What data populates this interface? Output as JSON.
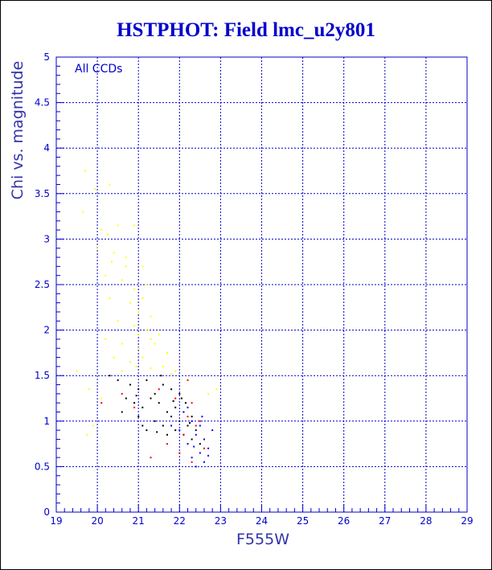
{
  "chart_data": {
    "type": "scatter",
    "title": "HSTPHOT: Field lmc_u2y801",
    "xlabel": "F555W",
    "ylabel": "Chi vs. magnitude",
    "annotation": "All CCDs",
    "xlim": [
      19,
      29
    ],
    "ylim": [
      0,
      5
    ],
    "x_ticks": [
      "19",
      "20",
      "21",
      "22",
      "23",
      "24",
      "25",
      "26",
      "27",
      "28",
      "29"
    ],
    "y_ticks": [
      "0",
      "0.5",
      "1",
      "1.5",
      "2",
      "2.5",
      "3",
      "3.5",
      "4",
      "4.5",
      "5"
    ],
    "grid": true,
    "series": [
      {
        "color": "#ffff00",
        "points": [
          [
            19.7,
            3.75
          ],
          [
            19.65,
            3.3
          ],
          [
            19.95,
            3.55
          ],
          [
            20.3,
            3.6
          ],
          [
            20.5,
            3.15
          ],
          [
            20.1,
            3.1
          ],
          [
            20.25,
            3.05
          ],
          [
            20.9,
            3.15
          ],
          [
            20.0,
            2.9
          ],
          [
            20.4,
            2.85
          ],
          [
            20.7,
            2.8
          ],
          [
            21.1,
            2.7
          ],
          [
            20.2,
            2.6
          ],
          [
            20.6,
            2.55
          ],
          [
            20.9,
            2.45
          ],
          [
            21.2,
            2.5
          ],
          [
            20.3,
            2.35
          ],
          [
            20.8,
            2.3
          ],
          [
            21.0,
            2.2
          ],
          [
            21.3,
            2.15
          ],
          [
            20.5,
            2.1
          ],
          [
            20.9,
            2.05
          ],
          [
            21.2,
            2.0
          ],
          [
            21.5,
            1.95
          ],
          [
            20.2,
            1.9
          ],
          [
            20.6,
            1.85
          ],
          [
            21.0,
            1.8
          ],
          [
            21.4,
            1.85
          ],
          [
            21.7,
            1.75
          ],
          [
            20.4,
            1.7
          ],
          [
            20.8,
            1.65
          ],
          [
            21.1,
            1.7
          ],
          [
            21.6,
            1.6
          ],
          [
            21.9,
            1.55
          ],
          [
            20.6,
            1.55
          ],
          [
            21.3,
            1.58
          ],
          [
            21.8,
            1.52
          ],
          [
            19.5,
            1.55
          ],
          [
            19.8,
            1.35
          ],
          [
            20.1,
            1.25
          ],
          [
            19.9,
            0.95
          ],
          [
            19.75,
            0.85
          ],
          [
            22.7,
            1.3
          ],
          [
            22.9,
            1.35
          ],
          [
            21.0,
            1.95
          ],
          [
            21.3,
            1.9
          ],
          [
            20.7,
            2.7
          ],
          [
            20.35,
            2.75
          ],
          [
            21.1,
            2.35
          ],
          [
            20.95,
            1.6
          ]
        ]
      },
      {
        "color": "#000000",
        "points": [
          [
            20.5,
            1.45
          ],
          [
            20.8,
            1.4
          ],
          [
            21.0,
            1.35
          ],
          [
            21.2,
            1.45
          ],
          [
            21.4,
            1.3
          ],
          [
            21.6,
            1.4
          ],
          [
            21.8,
            1.35
          ],
          [
            22.0,
            1.3
          ],
          [
            20.7,
            1.25
          ],
          [
            20.9,
            1.2
          ],
          [
            21.1,
            1.15
          ],
          [
            21.3,
            1.25
          ],
          [
            21.5,
            1.2
          ],
          [
            21.7,
            1.1
          ],
          [
            21.9,
            1.15
          ],
          [
            22.1,
            1.1
          ],
          [
            22.3,
            1.05
          ],
          [
            21.0,
            1.05
          ],
          [
            21.4,
            1.0
          ],
          [
            21.6,
            0.95
          ],
          [
            21.8,
            1.05
          ],
          [
            22.0,
            1.0
          ],
          [
            22.2,
            0.95
          ],
          [
            22.4,
            0.9
          ],
          [
            21.2,
            0.9
          ],
          [
            21.7,
            0.85
          ],
          [
            22.1,
            0.85
          ],
          [
            22.3,
            0.8
          ],
          [
            20.6,
            1.1
          ],
          [
            21.1,
            0.95
          ],
          [
            21.9,
            0.9
          ],
          [
            22.5,
            0.75
          ],
          [
            20.3,
            1.5
          ],
          [
            21.55,
            1.5
          ],
          [
            22.15,
            1.2
          ],
          [
            22.05,
            1.25
          ],
          [
            21.85,
            1.22
          ],
          [
            22.25,
            0.98
          ],
          [
            21.45,
            0.88
          ],
          [
            20.95,
            1.28
          ]
        ]
      },
      {
        "color": "#ff0000",
        "points": [
          [
            20.1,
            1.2
          ],
          [
            20.9,
            1.15
          ],
          [
            21.5,
            1.35
          ],
          [
            21.9,
            1.25
          ],
          [
            22.2,
            1.45
          ],
          [
            22.3,
            1.2
          ],
          [
            22.1,
            0.85
          ],
          [
            22.4,
            0.95
          ],
          [
            22.0,
            0.65
          ],
          [
            22.6,
            0.7
          ],
          [
            21.7,
            0.75
          ],
          [
            22.3,
            0.55
          ],
          [
            20.6,
            1.3
          ],
          [
            22.5,
            1.0
          ],
          [
            21.3,
            0.6
          ],
          [
            22.2,
            1.05
          ]
        ]
      },
      {
        "color": "#0000ff",
        "points": [
          [
            22.1,
            1.1
          ],
          [
            22.3,
            1.0
          ],
          [
            22.5,
            0.95
          ],
          [
            22.4,
            0.85
          ],
          [
            22.6,
            0.8
          ],
          [
            22.2,
            0.75
          ],
          [
            22.7,
            0.7
          ],
          [
            22.5,
            0.65
          ],
          [
            22.3,
            0.6
          ],
          [
            22.6,
            0.55
          ],
          [
            22.4,
            0.5
          ],
          [
            22.0,
            0.9
          ],
          [
            22.8,
            0.9
          ],
          [
            22.7,
            0.62
          ],
          [
            22.2,
            1.15
          ],
          [
            21.8,
            0.95
          ],
          [
            22.55,
            1.05
          ],
          [
            22.35,
            0.72
          ]
        ]
      }
    ]
  }
}
